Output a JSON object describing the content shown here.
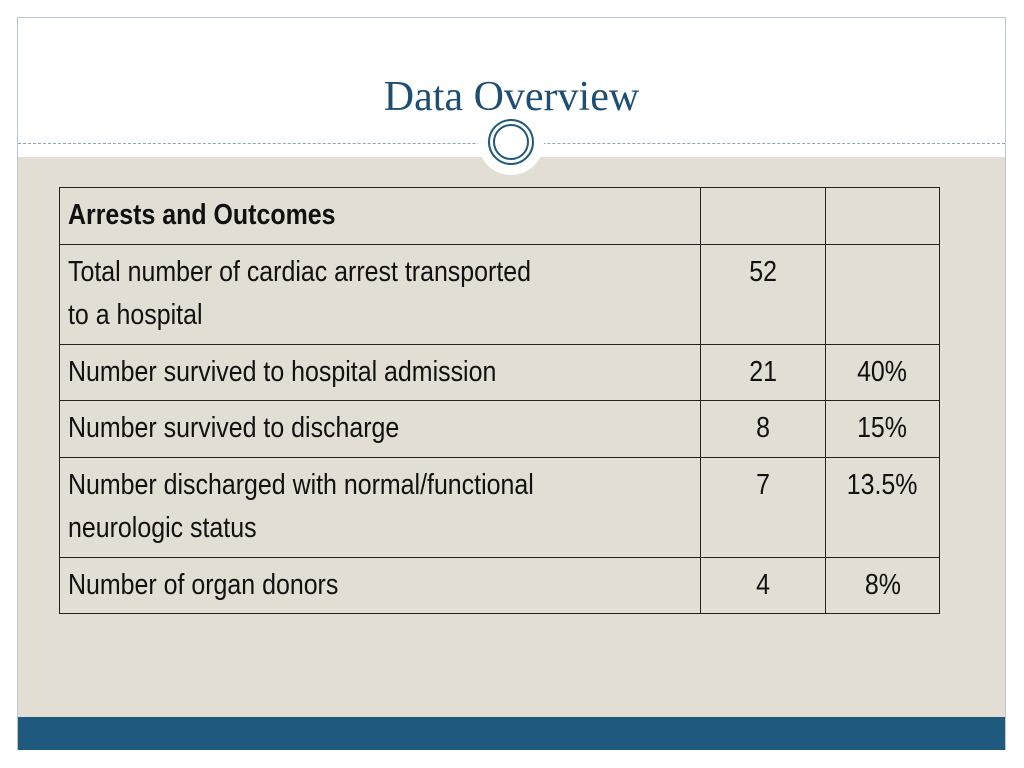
{
  "slide": {
    "title": "Data Overview"
  },
  "table": {
    "header": {
      "label": "Arrests and Outcomes",
      "count": "",
      "percent": ""
    },
    "rows": [
      {
        "label_line1": "Total number of cardiac arrest transported",
        "label_line2": "to a hospital",
        "count": "52",
        "percent": ""
      },
      {
        "label_line1": "Number survived to hospital admission",
        "label_line2": "",
        "count": "21",
        "percent": "40%"
      },
      {
        "label_line1": "Number survived to discharge",
        "label_line2": "",
        "count": "8",
        "percent": "15%"
      },
      {
        "label_line1": "Number discharged with normal/functional",
        "label_line2": "neurologic status",
        "count": "7",
        "percent": "13.5%"
      },
      {
        "label_line1": "Number of organ donors",
        "label_line2": "",
        "count": "4",
        "percent": "8%"
      }
    ]
  },
  "colors": {
    "title": "#1f4e73",
    "body_background": "#e2ded3",
    "footer_bar": "#1f5a7e"
  }
}
